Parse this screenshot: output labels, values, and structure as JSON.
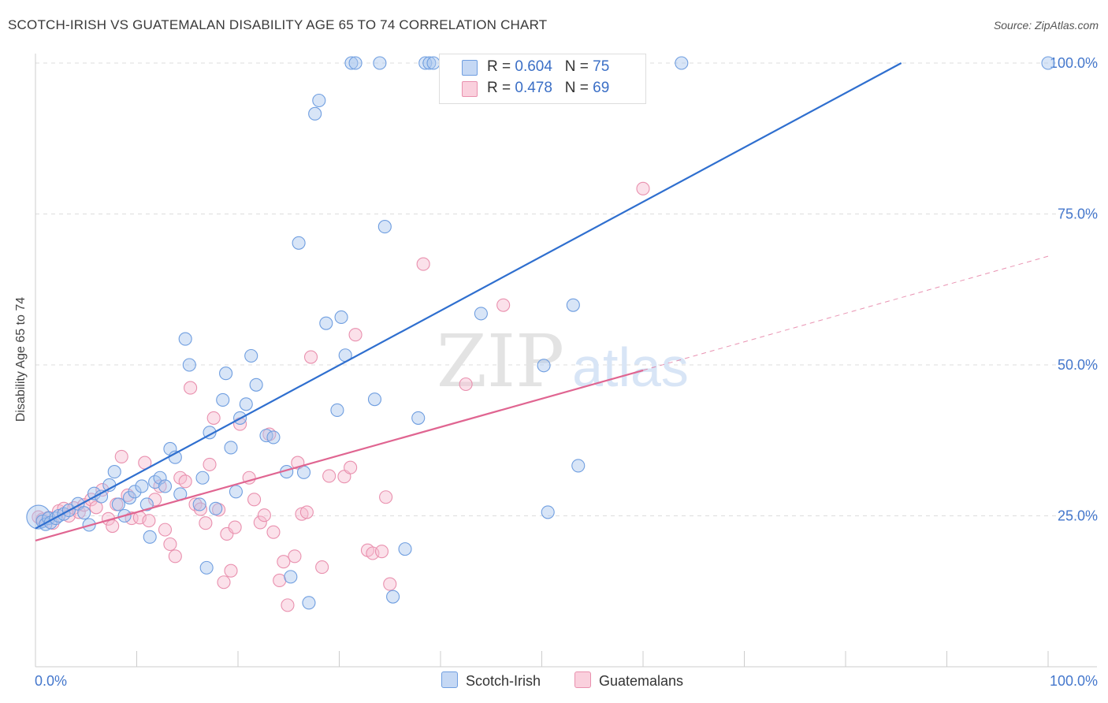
{
  "title": "SCOTCH-IRISH VS GUATEMALAN DISABILITY AGE 65 TO 74 CORRELATION CHART",
  "source": "Source: ZipAtlas.com",
  "watermark": {
    "zip": "ZIP",
    "atlas": "atlas"
  },
  "legend": {
    "rows": [
      {
        "r_label": "R = ",
        "r_value": "0.604",
        "n_label": "N = ",
        "n_value": "75"
      },
      {
        "r_label": "R = ",
        "r_value": "0.478",
        "n_label": "N = ",
        "n_value": "69"
      }
    ]
  },
  "bottom_legend": {
    "a": "Scotch-Irish",
    "b": "Guatemalans"
  },
  "colors": {
    "blue_fill": "#a9c6ee",
    "blue_edge": "#6f9ee0",
    "blue_line": "#2f6fcf",
    "pink_fill": "#f6bdd0",
    "pink_edge": "#e990ae",
    "pink_line": "#e06591",
    "tick_label": "#4477cc",
    "grid": "#dddddd"
  },
  "chart_data": {
    "type": "scatter",
    "title": "SCOTCH-IRISH VS GUATEMALAN DISABILITY AGE 65 TO 74 CORRELATION CHART",
    "xlabel": "",
    "ylabel": "Disability Age 65 to 74",
    "xlim": [
      0,
      100
    ],
    "ylim": [
      0,
      100
    ],
    "x_tick_labels": [
      "0.0%",
      "100.0%"
    ],
    "y_tick_labels": [
      "25.0%",
      "50.0%",
      "75.0%",
      "100.0%"
    ],
    "y_ticks": [
      25,
      50,
      75,
      100
    ],
    "grid": true,
    "legend_position": "top-center",
    "series": [
      {
        "name": "Scotch-Irish",
        "r": 0.604,
        "n": 75,
        "trend": {
          "x0": 0,
          "y0": 22.9,
          "x1": 85.5,
          "y1": 100
        },
        "points": [
          [
            0.3,
            24.8
          ],
          [
            0.7,
            24.1
          ],
          [
            1.0,
            23.6
          ],
          [
            1.3,
            24.6
          ],
          [
            1.5,
            23.9
          ],
          [
            2.0,
            24.6
          ],
          [
            2.3,
            25.0
          ],
          [
            2.8,
            25.3
          ],
          [
            3.3,
            25.9
          ],
          [
            4.2,
            27.0
          ],
          [
            4.8,
            25.5
          ],
          [
            5.3,
            23.5
          ],
          [
            5.8,
            28.7
          ],
          [
            6.5,
            28.2
          ],
          [
            7.3,
            30.1
          ],
          [
            7.8,
            32.3
          ],
          [
            8.2,
            26.9
          ],
          [
            8.8,
            25.0
          ],
          [
            9.3,
            28.0
          ],
          [
            9.8,
            29.0
          ],
          [
            10.5,
            29.9
          ],
          [
            11.0,
            26.9
          ],
          [
            11.3,
            21.5
          ],
          [
            11.8,
            30.6
          ],
          [
            12.3,
            31.3
          ],
          [
            12.8,
            29.9
          ],
          [
            13.3,
            36.1
          ],
          [
            13.8,
            34.7
          ],
          [
            14.3,
            28.6
          ],
          [
            14.8,
            54.3
          ],
          [
            15.2,
            50.0
          ],
          [
            16.2,
            26.9
          ],
          [
            16.5,
            31.3
          ],
          [
            16.9,
            16.4
          ],
          [
            17.2,
            38.8
          ],
          [
            17.8,
            26.2
          ],
          [
            18.5,
            44.2
          ],
          [
            18.8,
            48.6
          ],
          [
            19.3,
            36.3
          ],
          [
            19.8,
            29.0
          ],
          [
            20.2,
            41.2
          ],
          [
            20.8,
            43.5
          ],
          [
            21.3,
            51.5
          ],
          [
            21.8,
            46.7
          ],
          [
            22.8,
            38.3
          ],
          [
            23.5,
            38.0
          ],
          [
            24.8,
            32.3
          ],
          [
            25.2,
            14.9
          ],
          [
            26.0,
            70.2
          ],
          [
            26.5,
            32.2
          ],
          [
            27.0,
            10.6
          ],
          [
            27.6,
            91.6
          ],
          [
            28.0,
            93.8
          ],
          [
            28.7,
            56.9
          ],
          [
            29.8,
            42.5
          ],
          [
            30.2,
            57.9
          ],
          [
            30.6,
            51.6
          ],
          [
            31.2,
            100
          ],
          [
            31.6,
            100
          ],
          [
            33.5,
            44.3
          ],
          [
            34.0,
            100
          ],
          [
            34.5,
            72.9
          ],
          [
            35.3,
            11.6
          ],
          [
            36.5,
            19.5
          ],
          [
            37.8,
            41.2
          ],
          [
            38.5,
            100
          ],
          [
            38.9,
            100
          ],
          [
            39.3,
            100
          ],
          [
            44.0,
            58.5
          ],
          [
            50.2,
            49.9
          ],
          [
            50.6,
            25.6
          ],
          [
            53.1,
            59.9
          ],
          [
            53.6,
            33.3
          ],
          [
            63.8,
            100
          ],
          [
            100,
            100
          ]
        ]
      },
      {
        "name": "Guatemalans",
        "r": 0.478,
        "n": 69,
        "trend": {
          "x0": 0,
          "y0": 20.9,
          "x1": 60,
          "y1": 49.1,
          "dash_x1": 100,
          "dash_y1": 68.0
        },
        "points": [
          [
            0.3,
            24.8
          ],
          [
            0.7,
            24.4
          ],
          [
            1.3,
            24.7
          ],
          [
            1.7,
            23.8
          ],
          [
            2.3,
            25.8
          ],
          [
            2.8,
            26.2
          ],
          [
            3.3,
            25.0
          ],
          [
            3.8,
            26.3
          ],
          [
            4.3,
            25.6
          ],
          [
            4.8,
            26.8
          ],
          [
            5.5,
            27.7
          ],
          [
            6.0,
            26.4
          ],
          [
            6.6,
            29.3
          ],
          [
            7.2,
            24.5
          ],
          [
            7.6,
            23.3
          ],
          [
            8.0,
            26.9
          ],
          [
            8.5,
            34.8
          ],
          [
            9.1,
            28.4
          ],
          [
            9.5,
            24.6
          ],
          [
            10.3,
            24.7
          ],
          [
            10.8,
            33.8
          ],
          [
            11.2,
            24.2
          ],
          [
            11.8,
            27.7
          ],
          [
            12.3,
            29.9
          ],
          [
            12.8,
            22.7
          ],
          [
            13.3,
            20.3
          ],
          [
            13.8,
            18.3
          ],
          [
            14.3,
            31.3
          ],
          [
            14.8,
            30.7
          ],
          [
            15.3,
            46.2
          ],
          [
            15.8,
            26.9
          ],
          [
            16.3,
            26.1
          ],
          [
            16.8,
            23.8
          ],
          [
            17.2,
            33.5
          ],
          [
            17.6,
            41.2
          ],
          [
            18.1,
            26.0
          ],
          [
            18.6,
            14.0
          ],
          [
            18.9,
            22.0
          ],
          [
            19.3,
            15.9
          ],
          [
            19.7,
            23.1
          ],
          [
            20.2,
            40.2
          ],
          [
            21.1,
            31.3
          ],
          [
            21.6,
            27.7
          ],
          [
            22.2,
            23.9
          ],
          [
            22.6,
            25.1
          ],
          [
            23.1,
            38.5
          ],
          [
            23.5,
            22.3
          ],
          [
            24.1,
            14.3
          ],
          [
            24.5,
            17.4
          ],
          [
            24.9,
            10.2
          ],
          [
            25.6,
            18.3
          ],
          [
            25.9,
            33.8
          ],
          [
            26.3,
            25.3
          ],
          [
            26.8,
            25.6
          ],
          [
            27.2,
            51.3
          ],
          [
            28.3,
            16.5
          ],
          [
            29.0,
            31.6
          ],
          [
            30.5,
            31.5
          ],
          [
            31.1,
            33.0
          ],
          [
            31.6,
            55.0
          ],
          [
            32.8,
            19.3
          ],
          [
            33.3,
            18.8
          ],
          [
            34.2,
            19.1
          ],
          [
            34.6,
            28.1
          ],
          [
            35.0,
            13.7
          ],
          [
            38.3,
            66.7
          ],
          [
            42.5,
            46.8
          ],
          [
            46.2,
            59.9
          ],
          [
            60.0,
            79.2
          ]
        ]
      }
    ]
  }
}
